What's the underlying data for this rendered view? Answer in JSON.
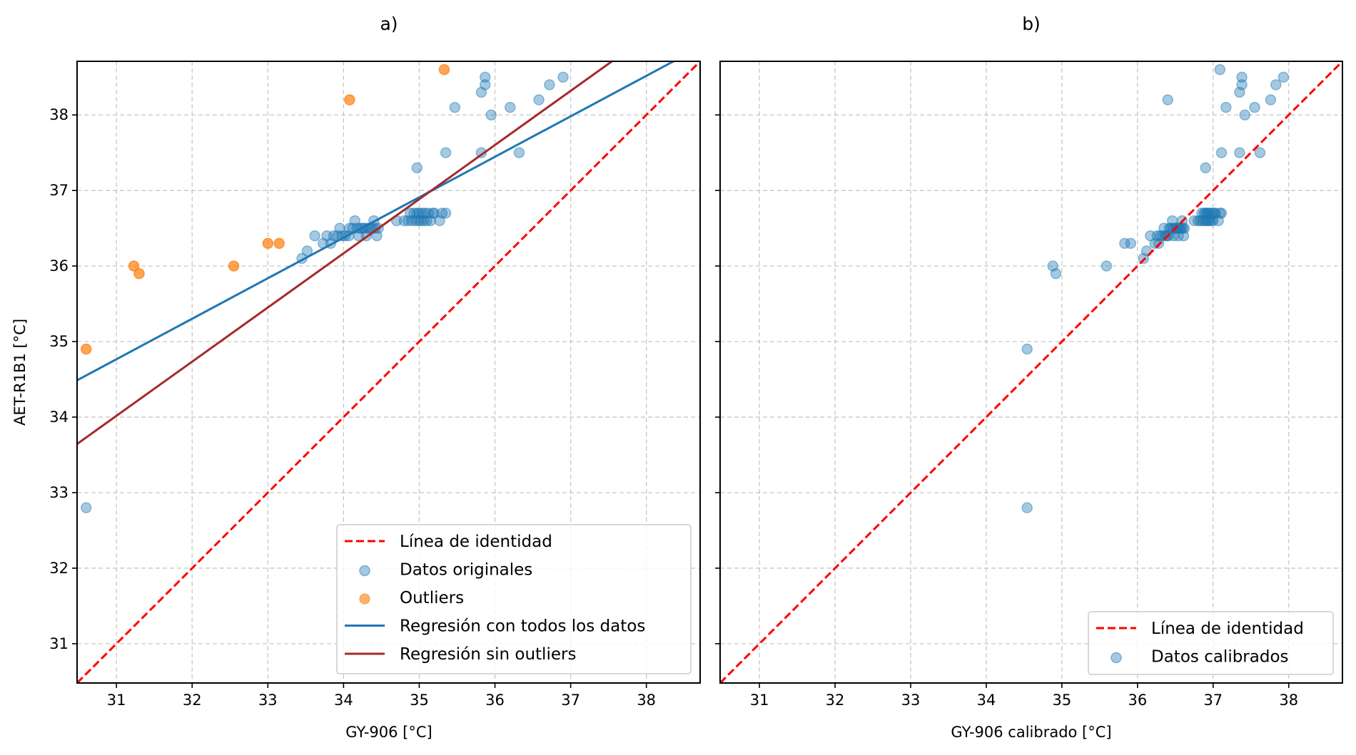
{
  "chart_data": [
    {
      "type": "scatter",
      "title": "a)",
      "xlabel": "GY-906 [°C]",
      "ylabel": "AET-R1B1 [°C]",
      "xlim": [
        30.48,
        38.71
      ],
      "ylim": [
        30.48,
        38.71
      ],
      "xticks": [
        31,
        32,
        33,
        34,
        35,
        36,
        37,
        38
      ],
      "yticks": [
        31,
        32,
        33,
        34,
        35,
        36,
        37,
        38
      ],
      "grid": true,
      "legend_position": "bottom-right",
      "legend": [
        {
          "label": "Línea de identidad",
          "kind": "dashed-line",
          "color": "#ff0000"
        },
        {
          "label": "Datos originales",
          "kind": "marker",
          "color": "#1f77b4"
        },
        {
          "label": "Outliers",
          "kind": "marker",
          "color": "#ff7f0e"
        },
        {
          "label": "Regresión con todos los datos",
          "kind": "line",
          "color": "#1f77b4"
        },
        {
          "label": "Regresión sin outliers",
          "kind": "line",
          "color": "#a52a2a"
        }
      ],
      "series": [
        {
          "name": "Línea de identidad",
          "type": "line",
          "style": "dashed",
          "color": "#ff0000",
          "x": [
            30.48,
            38.71
          ],
          "y": [
            30.48,
            38.71
          ]
        },
        {
          "name": "Regresión con todos los datos",
          "type": "line",
          "color": "#1f77b4",
          "slope": 0.536,
          "intercept": 18.15
        },
        {
          "name": "Regresión sin outliers",
          "type": "line",
          "color": "#a52a2a",
          "slope": 0.717,
          "intercept": 11.79
        },
        {
          "name": "Datos originales",
          "type": "scatter",
          "color": "#1f77b4",
          "points": [
            [
              30.6,
              32.8
            ],
            [
              33.45,
              36.1
            ],
            [
              33.52,
              36.2
            ],
            [
              33.62,
              36.4
            ],
            [
              33.73,
              36.3
            ],
            [
              33.78,
              36.4
            ],
            [
              33.83,
              36.3
            ],
            [
              33.87,
              36.4
            ],
            [
              33.92,
              36.4
            ],
            [
              33.95,
              36.5
            ],
            [
              33.98,
              36.4
            ],
            [
              34.02,
              36.4
            ],
            [
              34.07,
              36.4
            ],
            [
              34.08,
              36.5
            ],
            [
              34.12,
              36.5
            ],
            [
              34.15,
              36.6
            ],
            [
              34.18,
              36.5
            ],
            [
              34.2,
              36.4
            ],
            [
              34.22,
              36.5
            ],
            [
              34.25,
              36.5
            ],
            [
              34.28,
              36.5
            ],
            [
              34.3,
              36.4
            ],
            [
              34.32,
              36.5
            ],
            [
              34.35,
              36.5
            ],
            [
              34.38,
              36.5
            ],
            [
              34.4,
              36.6
            ],
            [
              34.42,
              36.5
            ],
            [
              34.44,
              36.4
            ],
            [
              34.46,
              36.5
            ],
            [
              34.7,
              36.6
            ],
            [
              34.8,
              36.6
            ],
            [
              34.85,
              36.6
            ],
            [
              34.88,
              36.7
            ],
            [
              34.9,
              36.6
            ],
            [
              34.93,
              36.7
            ],
            [
              34.95,
              36.6
            ],
            [
              34.97,
              36.7
            ],
            [
              34.99,
              36.6
            ],
            [
              35.0,
              36.7
            ],
            [
              35.02,
              36.6
            ],
            [
              35.04,
              36.7
            ],
            [
              35.06,
              36.6
            ],
            [
              35.08,
              36.7
            ],
            [
              35.1,
              36.6
            ],
            [
              35.12,
              36.7
            ],
            [
              35.15,
              36.6
            ],
            [
              35.18,
              36.7
            ],
            [
              35.2,
              36.7
            ],
            [
              35.27,
              36.6
            ],
            [
              35.3,
              36.7
            ],
            [
              35.35,
              36.7
            ],
            [
              34.97,
              37.3
            ],
            [
              35.35,
              37.5
            ],
            [
              35.82,
              37.5
            ],
            [
              36.32,
              37.5
            ],
            [
              35.47,
              38.1
            ],
            [
              35.82,
              38.3
            ],
            [
              35.87,
              38.4
            ],
            [
              35.87,
              38.5
            ],
            [
              35.95,
              38.0
            ],
            [
              36.2,
              38.1
            ],
            [
              36.58,
              38.2
            ],
            [
              36.72,
              38.4
            ],
            [
              36.9,
              38.5
            ]
          ]
        },
        {
          "name": "Outliers",
          "type": "scatter",
          "color": "#ff7f0e",
          "points": [
            [
              30.6,
              34.9
            ],
            [
              31.23,
              36.0
            ],
            [
              31.3,
              35.9
            ],
            [
              32.55,
              36.0
            ],
            [
              33.0,
              36.3
            ],
            [
              33.15,
              36.3
            ],
            [
              34.08,
              38.2
            ],
            [
              35.33,
              38.6
            ]
          ]
        }
      ]
    },
    {
      "type": "scatter",
      "title": "b)",
      "xlabel": "GY-906 calibrado [°C]",
      "ylabel": "",
      "xlim": [
        30.48,
        38.71
      ],
      "ylim": [
        30.48,
        38.71
      ],
      "xticks": [
        31,
        32,
        33,
        34,
        35,
        36,
        37,
        38
      ],
      "yticks": [
        31,
        32,
        33,
        34,
        35,
        36,
        37,
        38
      ],
      "show_yticklabels": false,
      "grid": true,
      "legend_position": "bottom-right",
      "legend": [
        {
          "label": "Línea de identidad",
          "kind": "dashed-line",
          "color": "#ff0000"
        },
        {
          "label": "Datos calibrados",
          "kind": "marker",
          "color": "#1f77b4"
        }
      ],
      "series": [
        {
          "name": "Línea de identidad",
          "type": "line",
          "style": "dashed",
          "color": "#ff0000",
          "x": [
            30.48,
            38.71
          ],
          "y": [
            30.48,
            38.71
          ]
        },
        {
          "name": "Datos calibrados",
          "type": "scatter",
          "color": "#1f77b4",
          "points": [
            [
              34.54,
              32.8
            ],
            [
              34.54,
              34.9
            ],
            [
              34.88,
              36.0
            ],
            [
              34.92,
              35.9
            ],
            [
              35.59,
              36.0
            ],
            [
              35.83,
              36.3
            ],
            [
              35.91,
              36.3
            ],
            [
              36.08,
              36.1
            ],
            [
              36.12,
              36.2
            ],
            [
              36.17,
              36.4
            ],
            [
              36.23,
              36.3
            ],
            [
              36.26,
              36.4
            ],
            [
              36.28,
              36.3
            ],
            [
              36.3,
              36.4
            ],
            [
              36.33,
              36.4
            ],
            [
              36.35,
              36.5
            ],
            [
              36.37,
              36.4
            ],
            [
              36.39,
              36.4
            ],
            [
              36.41,
              36.4
            ],
            [
              36.42,
              36.5
            ],
            [
              36.44,
              36.5
            ],
            [
              36.46,
              36.6
            ],
            [
              36.47,
              36.5
            ],
            [
              36.48,
              36.4
            ],
            [
              36.5,
              36.5
            ],
            [
              36.51,
              36.5
            ],
            [
              36.53,
              36.5
            ],
            [
              36.54,
              36.4
            ],
            [
              36.55,
              36.5
            ],
            [
              36.56,
              36.5
            ],
            [
              36.58,
              36.5
            ],
            [
              36.59,
              36.6
            ],
            [
              36.6,
              36.5
            ],
            [
              36.61,
              36.4
            ],
            [
              36.62,
              36.5
            ],
            [
              36.75,
              36.6
            ],
            [
              36.8,
              36.6
            ],
            [
              36.83,
              36.6
            ],
            [
              36.85,
              36.7
            ],
            [
              36.86,
              36.6
            ],
            [
              36.88,
              36.7
            ],
            [
              36.89,
              36.6
            ],
            [
              36.9,
              36.7
            ],
            [
              36.91,
              36.6
            ],
            [
              36.92,
              36.7
            ],
            [
              36.93,
              36.6
            ],
            [
              36.94,
              36.7
            ],
            [
              36.95,
              36.6
            ],
            [
              36.96,
              36.7
            ],
            [
              36.98,
              36.6
            ],
            [
              36.99,
              36.7
            ],
            [
              37.0,
              36.6
            ],
            [
              37.02,
              36.7
            ],
            [
              37.03,
              36.7
            ],
            [
              37.07,
              36.6
            ],
            [
              37.09,
              36.7
            ],
            [
              37.11,
              36.7
            ],
            [
              36.9,
              37.3
            ],
            [
              37.11,
              37.5
            ],
            [
              37.35,
              37.5
            ],
            [
              37.62,
              37.5
            ],
            [
              37.17,
              38.1
            ],
            [
              37.35,
              38.3
            ],
            [
              37.38,
              38.4
            ],
            [
              37.38,
              38.5
            ],
            [
              37.42,
              38.0
            ],
            [
              37.55,
              38.1
            ],
            [
              37.76,
              38.2
            ],
            [
              37.83,
              38.4
            ],
            [
              37.93,
              38.5
            ],
            [
              36.4,
              38.2
            ],
            [
              37.09,
              38.6
            ]
          ]
        }
      ]
    }
  ]
}
